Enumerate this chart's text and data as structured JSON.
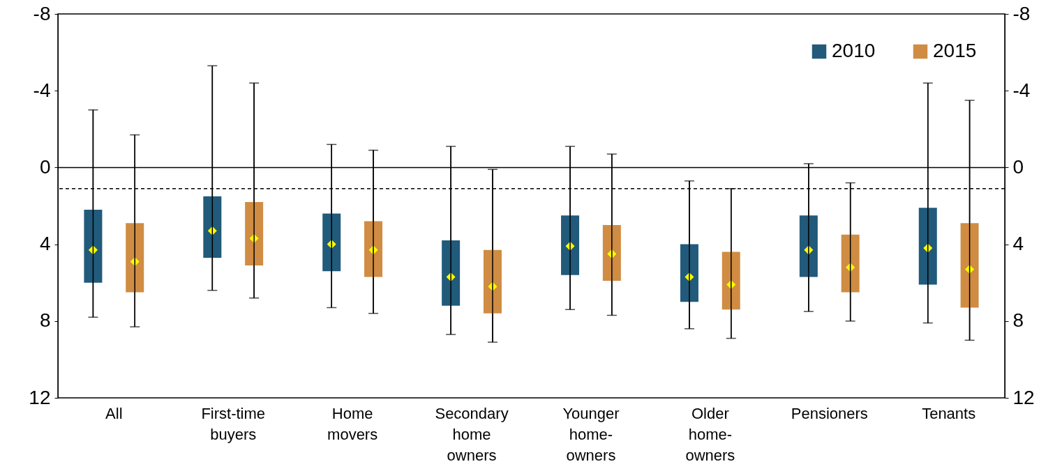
{
  "chart_data": {
    "type": "box",
    "categories": [
      "All",
      "First-time buyers",
      "Home movers",
      "Secondary home owners",
      "Younger home-owners",
      "Older home-owners",
      "Pensioners",
      "Tenants"
    ],
    "series": [
      {
        "name": "2010",
        "color": "#215a7a",
        "boxes": [
          {
            "low": -3.0,
            "q1": 2.2,
            "q3": 6.0,
            "high": 7.8,
            "mean": 4.3
          },
          {
            "low": -5.3,
            "q1": 1.5,
            "q3": 4.7,
            "high": 6.4,
            "mean": 3.3
          },
          {
            "low": -1.2,
            "q1": 2.4,
            "q3": 5.4,
            "high": 7.3,
            "mean": 4.0
          },
          {
            "low": -1.1,
            "q1": 3.8,
            "q3": 7.2,
            "high": 8.7,
            "mean": 5.7
          },
          {
            "low": -1.1,
            "q1": 2.5,
            "q3": 5.6,
            "high": 7.4,
            "mean": 4.1
          },
          {
            "low": 0.7,
            "q1": 4.0,
            "q3": 7.0,
            "high": 8.4,
            "mean": 5.7
          },
          {
            "low": -0.2,
            "q1": 2.5,
            "q3": 5.7,
            "high": 7.5,
            "mean": 4.3
          },
          {
            "low": -4.4,
            "q1": 2.1,
            "q3": 6.1,
            "high": 8.1,
            "mean": 4.2
          }
        ]
      },
      {
        "name": "2015",
        "color": "#d08c42",
        "boxes": [
          {
            "low": -1.7,
            "q1": 2.9,
            "q3": 6.5,
            "high": 8.3,
            "mean": 4.9
          },
          {
            "low": -4.4,
            "q1": 1.8,
            "q3": 5.1,
            "high": 6.8,
            "mean": 3.7
          },
          {
            "low": -0.9,
            "q1": 2.8,
            "q3": 5.7,
            "high": 7.6,
            "mean": 4.3
          },
          {
            "low": 0.1,
            "q1": 4.3,
            "q3": 7.6,
            "high": 9.1,
            "mean": 6.2
          },
          {
            "low": -0.7,
            "q1": 3.0,
            "q3": 5.9,
            "high": 7.7,
            "mean": 4.5
          },
          {
            "low": 1.1,
            "q1": 4.4,
            "q3": 7.4,
            "high": 8.9,
            "mean": 6.1
          },
          {
            "low": 0.8,
            "q1": 3.5,
            "q3": 6.5,
            "high": 8.0,
            "mean": 5.2
          },
          {
            "low": -3.5,
            "q1": 2.9,
            "q3": 7.3,
            "high": 9.0,
            "mean": 5.3
          }
        ]
      }
    ],
    "ylim": [
      12,
      -8
    ],
    "yticks": [
      -8,
      -4,
      0,
      4,
      8,
      12
    ],
    "y2lim": [
      12,
      -8
    ],
    "y2ticks": [
      -8,
      -4,
      0,
      4,
      8,
      12
    ],
    "ref_lines": [
      {
        "axis": "y",
        "value": 0,
        "color": "#000000",
        "line_style": "solid"
      },
      {
        "axis": "y",
        "value": 1.1,
        "color": "#000000",
        "line_style": "dashed"
      }
    ],
    "marker": "diamond",
    "legend": "top right"
  }
}
